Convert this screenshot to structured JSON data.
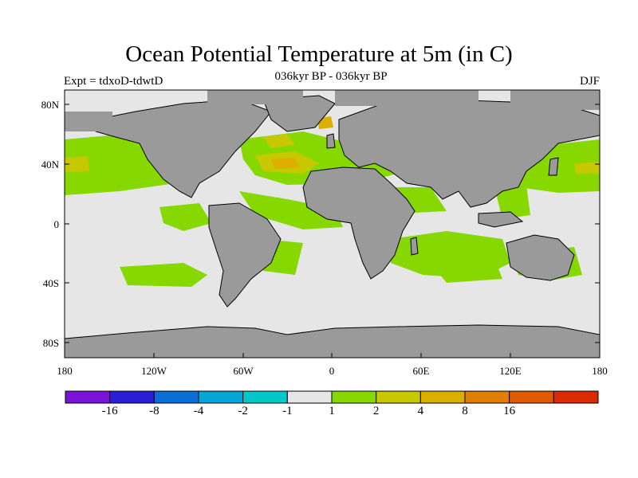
{
  "title": "Ocean Potential Temperature at 5m (in C)",
  "subtitle": "036kyr BP - 036kyr BP",
  "expt_label": "Expt = tdxoD-tdwtD",
  "season": "DJF",
  "lat_ticks": [
    "80N",
    "40N",
    "0",
    "40S",
    "80S"
  ],
  "lon_ticks": [
    "180",
    "120W",
    "60W",
    "0",
    "60E",
    "120E",
    "180"
  ],
  "colorbar": {
    "colors": [
      "#7a14d6",
      "#2a1fd6",
      "#0b6fd8",
      "#05a5d6",
      "#00c8c8",
      "#e6e6e6",
      "#86d800",
      "#c8c800",
      "#dcae00",
      "#e07e00",
      "#e05a00",
      "#dc2a00"
    ],
    "labels": [
      "-16",
      "-8",
      "-4",
      "-2",
      "-1",
      "1",
      "2",
      "4",
      "8",
      "16"
    ]
  },
  "colors": {
    "land": "#9a9a9a",
    "ocean_neutral": "#e6e6e6",
    "warm1": "#86d800",
    "warm2": "#c8c800",
    "warm3": "#dcae00",
    "cyan": "#00c8c8"
  }
}
